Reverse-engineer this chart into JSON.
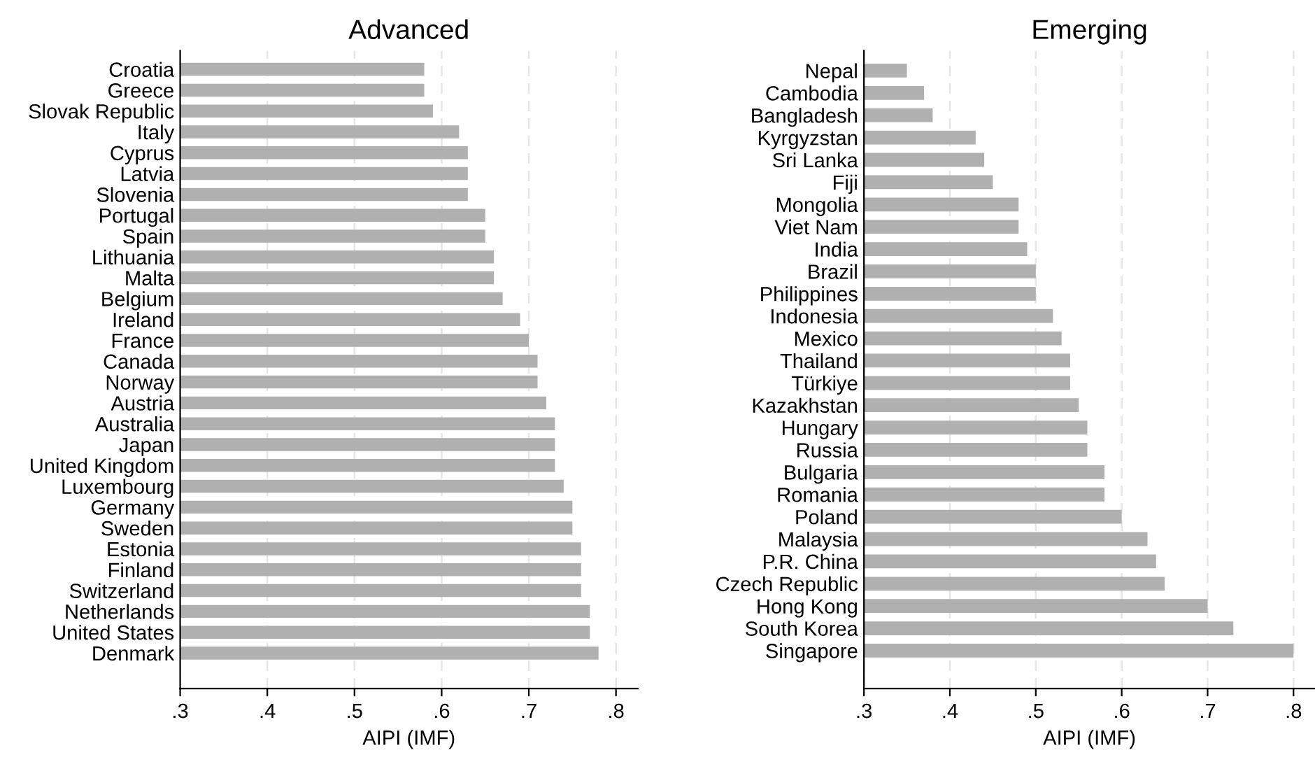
{
  "chart_data": [
    {
      "type": "bar",
      "orientation": "horizontal",
      "title": "Advanced",
      "xlabel": "AIPI (IMF)",
      "categories": [
        "Croatia",
        "Greece",
        "Slovak Republic",
        "Italy",
        "Cyprus",
        "Latvia",
        "Slovenia",
        "Portugal",
        "Spain",
        "Lithuania",
        "Malta",
        "Belgium",
        "Ireland",
        "France",
        "Canada",
        "Norway",
        "Austria",
        "Australia",
        "Japan",
        "United Kingdom",
        "Luxembourg",
        "Germany",
        "Sweden",
        "Estonia",
        "Finland",
        "Switzerland",
        "Netherlands",
        "United States",
        "Denmark"
      ],
      "values": [
        0.58,
        0.58,
        0.59,
        0.62,
        0.63,
        0.63,
        0.63,
        0.65,
        0.65,
        0.66,
        0.66,
        0.67,
        0.69,
        0.7,
        0.71,
        0.71,
        0.72,
        0.73,
        0.73,
        0.73,
        0.74,
        0.75,
        0.75,
        0.76,
        0.76,
        0.76,
        0.77,
        0.77,
        0.78
      ],
      "color": "#b0b0b0",
      "xlim": [
        0.3,
        0.825
      ],
      "xticks": [
        {
          "value": 0.3,
          "label": ".3"
        },
        {
          "value": 0.4,
          "label": ".4"
        },
        {
          "value": 0.5,
          "label": ".5"
        },
        {
          "value": 0.6,
          "label": ".6"
        },
        {
          "value": 0.7,
          "label": ".7"
        },
        {
          "value": 0.8,
          "label": ".8"
        }
      ],
      "grid": "x"
    },
    {
      "type": "bar",
      "orientation": "horizontal",
      "title": "Emerging",
      "xlabel": "AIPI (IMF)",
      "categories": [
        "Nepal",
        "Cambodia",
        "Bangladesh",
        "Kyrgyzstan",
        "Sri Lanka",
        "Fiji",
        "Mongolia",
        "Viet Nam",
        "India",
        "Brazil",
        "Philippines",
        "Indonesia",
        "Mexico",
        "Thailand",
        "Türkiye",
        "Kazakhstan",
        "Hungary",
        "Russia",
        "Bulgaria",
        "Romania",
        "Poland",
        "Malaysia",
        "P.R. China",
        "Czech Republic",
        "Hong Kong",
        "South Korea",
        "Singapore"
      ],
      "values": [
        0.35,
        0.37,
        0.38,
        0.43,
        0.44,
        0.45,
        0.48,
        0.48,
        0.49,
        0.5,
        0.5,
        0.52,
        0.53,
        0.54,
        0.54,
        0.55,
        0.56,
        0.56,
        0.58,
        0.58,
        0.6,
        0.63,
        0.64,
        0.65,
        0.7,
        0.73,
        0.8
      ],
      "color": "#b0b0b0",
      "xlim": [
        0.3,
        0.825
      ],
      "xticks": [
        {
          "value": 0.3,
          "label": ".3"
        },
        {
          "value": 0.4,
          "label": ".4"
        },
        {
          "value": 0.5,
          "label": ".5"
        },
        {
          "value": 0.6,
          "label": ".6"
        },
        {
          "value": 0.7,
          "label": ".7"
        },
        {
          "value": 0.8,
          "label": ".8"
        }
      ],
      "grid": "x"
    }
  ]
}
